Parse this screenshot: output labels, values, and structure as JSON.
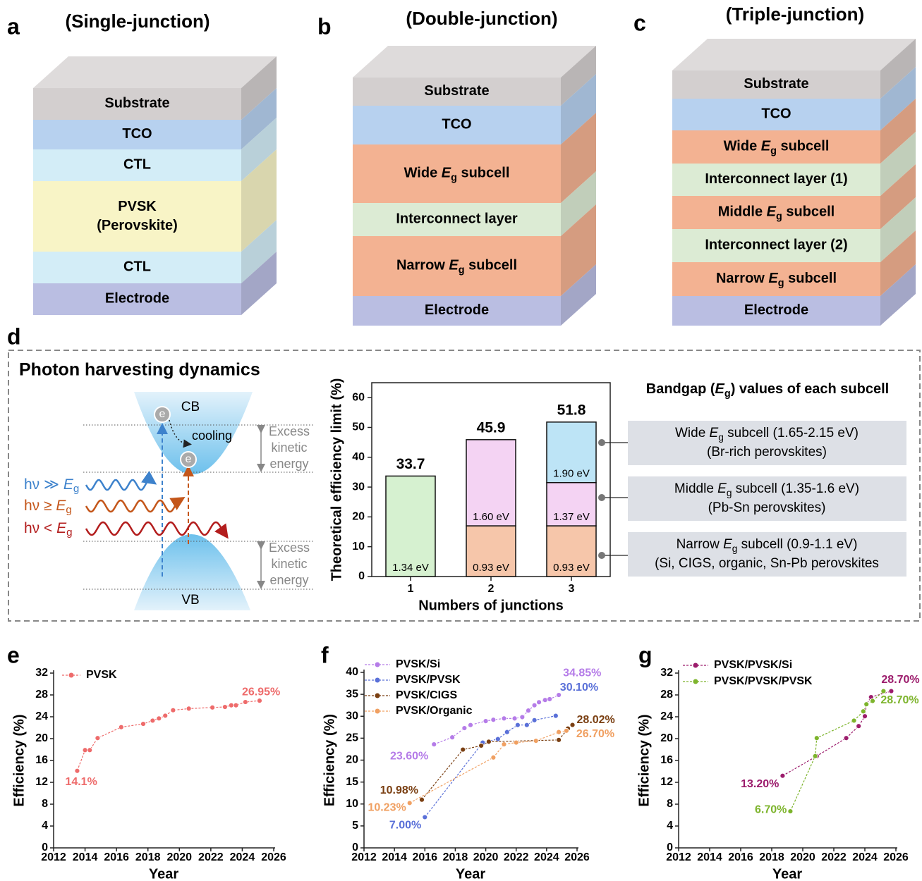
{
  "panel_labels": [
    "a",
    "b",
    "c",
    "d",
    "e",
    "f",
    "g"
  ],
  "stacks": [
    {
      "title": "(Single-junction)",
      "layers": [
        {
          "text": [
            {
              "t": "Substrate"
            }
          ],
          "color": "#d3cfcf"
        },
        {
          "text": [
            {
              "t": "TCO"
            }
          ],
          "color": "#b7d1ef"
        },
        {
          "text": [
            {
              "t": "CTL"
            }
          ],
          "color": "#d3edf7"
        },
        {
          "text": [
            {
              "t": "PVSK"
            },
            {
              "t": "(Perovskite)",
              "style": "newline"
            }
          ],
          "color": "#f8f4c6"
        },
        {
          "text": [
            {
              "t": "CTL"
            }
          ],
          "color": "#d3edf7"
        },
        {
          "text": [
            {
              "t": "Electrode"
            }
          ],
          "color": "#babee2"
        }
      ]
    },
    {
      "title": "(Double-junction)",
      "layers": [
        {
          "text": [
            {
              "t": "Substrate"
            }
          ],
          "color": "#d3cfcf"
        },
        {
          "text": [
            {
              "t": "TCO"
            }
          ],
          "color": "#b7d1ef"
        },
        {
          "text": [
            {
              "t": "Wide "
            },
            {
              "t": "E",
              "style": "italic"
            },
            {
              "t": "g",
              "style": "sub"
            },
            {
              "t": " subcell"
            }
          ],
          "color": "#f3b292"
        },
        {
          "text": [
            {
              "t": "Interconnect layer"
            }
          ],
          "color": "#dcebd4"
        },
        {
          "text": [
            {
              "t": "Narrow "
            },
            {
              "t": "E",
              "style": "italic"
            },
            {
              "t": "g",
              "style": "sub"
            },
            {
              "t": " subcell"
            }
          ],
          "color": "#f3b292"
        },
        {
          "text": [
            {
              "t": "Electrode"
            }
          ],
          "color": "#babee2"
        }
      ]
    },
    {
      "title": "(Triple-junction)",
      "layers": [
        {
          "text": [
            {
              "t": "Substrate"
            }
          ],
          "color": "#d3cfcf"
        },
        {
          "text": [
            {
              "t": "TCO"
            }
          ],
          "color": "#b7d1ef"
        },
        {
          "text": [
            {
              "t": "Wide "
            },
            {
              "t": "E",
              "style": "italic"
            },
            {
              "t": "g",
              "style": "sub"
            },
            {
              "t": " subcell"
            }
          ],
          "color": "#f3b292"
        },
        {
          "text": [
            {
              "t": "Interconnect layer (1)"
            }
          ],
          "color": "#dcebd4"
        },
        {
          "text": [
            {
              "t": "Middle "
            },
            {
              "t": "E",
              "style": "italic"
            },
            {
              "t": "g",
              "style": "sub"
            },
            {
              "t": " subcell"
            }
          ],
          "color": "#f3b292"
        },
        {
          "text": [
            {
              "t": "Interconnect layer (2)"
            }
          ],
          "color": "#dcebd4"
        },
        {
          "text": [
            {
              "t": "Narrow "
            },
            {
              "t": "E",
              "style": "italic"
            },
            {
              "t": "g",
              "style": "sub"
            },
            {
              "t": " subcell"
            }
          ],
          "color": "#f3b292"
        },
        {
          "text": [
            {
              "t": "Electrode"
            }
          ],
          "color": "#babee2"
        }
      ]
    }
  ],
  "photon": {
    "title": "Photon harvesting dynamics",
    "cb": "CB",
    "vb": "VB",
    "electron": "e",
    "cooling": "cooling",
    "excess": [
      "Excess",
      "kinetic",
      "energy"
    ],
    "photons": [
      {
        "text": [
          {
            "t": "hν ≫ "
          },
          {
            "t": "E",
            "style": "italic"
          },
          {
            "t": "g",
            "style": "sub"
          }
        ],
        "color": "#3d82cc"
      },
      {
        "text": [
          {
            "t": "hν ≥ "
          },
          {
            "t": "E",
            "style": "italic"
          },
          {
            "t": "g",
            "style": "sub"
          }
        ],
        "color": "#c4561a"
      },
      {
        "text": [
          {
            "t": "hν < "
          },
          {
            "t": "E",
            "style": "italic"
          },
          {
            "t": "g",
            "style": "sub"
          }
        ],
        "color": "#b31d1d"
      }
    ]
  },
  "subcells": {
    "title": [
      {
        "t": "Bandgap ("
      },
      {
        "t": "E",
        "style": "italic"
      },
      {
        "t": "g",
        "style": "sub"
      },
      {
        "t": ") values of each subcell"
      }
    ],
    "boxes": [
      {
        "lines": [
          [
            {
              "t": "Wide "
            },
            {
              "t": "E",
              "style": "italic"
            },
            {
              "t": "g",
              "style": "sub"
            },
            {
              "t": " subcell (1.65-2.15 eV)"
            }
          ],
          [
            {
              "t": "(Br-rich perovskites)"
            }
          ]
        ]
      },
      {
        "lines": [
          [
            {
              "t": "Middle "
            },
            {
              "t": "E",
              "style": "italic"
            },
            {
              "t": "g",
              "style": "sub"
            },
            {
              "t": " subcell (1.35-1.6 eV)"
            }
          ],
          [
            {
              "t": "(Pb-Sn perovskites)"
            }
          ]
        ]
      },
      {
        "lines": [
          [
            {
              "t": "Narrow "
            },
            {
              "t": "E",
              "style": "italic"
            },
            {
              "t": "g",
              "style": "sub"
            },
            {
              "t": " subcell (0.9-1.1 eV)"
            }
          ],
          [
            {
              "t": "(Si, CIGS, organic, Sn-Pb perovskites"
            }
          ]
        ]
      }
    ]
  },
  "chart_data": [
    {
      "type": "stacked-bar",
      "ylabel": "Theoretical efficiency limit (%)",
      "xlabel": "Numbers of junctions",
      "categories": [
        "1",
        "2",
        "3"
      ],
      "totals": [
        33.7,
        45.9,
        51.8
      ],
      "stacks": [
        [
          {
            "value": 33.7,
            "color": "#d6f1d0",
            "label": "1.34 eV"
          }
        ],
        [
          {
            "value": 17,
            "color": "#f6c6aa",
            "label": "0.93 eV"
          },
          {
            "value": 28.9,
            "color": "#f4d3f3",
            "label": "1.60 eV"
          }
        ],
        [
          {
            "value": 17,
            "color": "#f6c6aa",
            "label": "0.93 eV"
          },
          {
            "value": 14.5,
            "color": "#f4d3f3",
            "label": "1.37 eV"
          },
          {
            "value": 20.3,
            "color": "#bde4f6",
            "label": "1.90 eV"
          }
        ]
      ],
      "ylim": [
        0,
        65
      ],
      "yticks": [
        0,
        10,
        20,
        30,
        40,
        50,
        60
      ]
    },
    {
      "type": "line",
      "xlabel": "Year",
      "ylabel": "Efficiency (%)",
      "xlim": [
        2012,
        2026
      ],
      "xticks": [
        2012,
        2014,
        2016,
        2018,
        2020,
        2022,
        2024,
        2026
      ],
      "ylim": [
        0,
        32
      ],
      "yticks": [
        0,
        4,
        8,
        12,
        16,
        20,
        24,
        28,
        32
      ],
      "series": [
        {
          "name": "PVSK",
          "color": "#ee6b6b",
          "x": [
            2013.5,
            2014,
            2014.3,
            2014.8,
            2016.3,
            2017.7,
            2018.3,
            2018.7,
            2019.1,
            2019.6,
            2020.6,
            2022.1,
            2022.9,
            2023.3,
            2023.6,
            2024.2,
            2025.1
          ],
          "values": [
            14.1,
            17.9,
            17.9,
            20.1,
            22.1,
            22.7,
            23.3,
            23.7,
            24.2,
            25.2,
            25.5,
            25.7,
            25.8,
            26.1,
            26.1,
            26.7,
            26.95
          ],
          "value_labels": [
            "14.1%",
            null,
            null,
            null,
            null,
            null,
            null,
            null,
            null,
            null,
            null,
            null,
            null,
            null,
            null,
            null,
            "26.95%"
          ]
        }
      ]
    },
    {
      "type": "line",
      "xlabel": "Year",
      "ylabel": "Efficiency (%)",
      "xlim": [
        2012,
        2026
      ],
      "xticks": [
        2012,
        2014,
        2016,
        2018,
        2020,
        2022,
        2024,
        2026
      ],
      "ylim": [
        0,
        40
      ],
      "yticks": [
        0,
        5,
        10,
        15,
        20,
        25,
        30,
        35,
        40
      ],
      "series": [
        {
          "name": "PVSK/Si",
          "color": "#b57ce8",
          "x": [
            2016.6,
            2017.8,
            2018.6,
            2019,
            2020,
            2020.5,
            2021.2,
            2021.9,
            2022.4,
            2022.8,
            2023.2,
            2023.5,
            2023.9,
            2024.2,
            2024.8
          ],
          "values": [
            23.6,
            25.2,
            27.3,
            28,
            28.9,
            29.2,
            29.5,
            29.5,
            29.8,
            31.3,
            32.5,
            33.2,
            33.7,
            33.9,
            34.85
          ],
          "value_labels": [
            "23.60%",
            null,
            null,
            null,
            null,
            null,
            null,
            null,
            null,
            null,
            null,
            null,
            null,
            null,
            "34.85%"
          ]
        },
        {
          "name": "PVSK/PVSK",
          "color": "#5a70d8",
          "x": [
            2016,
            2019.8,
            2020.8,
            2021.4,
            2022.1,
            2022.7,
            2023.2,
            2024.6
          ],
          "values": [
            7.0,
            24.0,
            24.8,
            26.4,
            28.0,
            28.0,
            29.1,
            30.1
          ],
          "value_labels": [
            "7.00%",
            null,
            null,
            null,
            null,
            null,
            null,
            "30.10%"
          ]
        },
        {
          "name": "PVSK/CIGS",
          "color": "#7a3f12",
          "x": [
            2015.8,
            2018.5,
            2019.7,
            2020.2,
            2024.8,
            2025.4,
            2025.7
          ],
          "values": [
            10.98,
            22.4,
            23.3,
            24.2,
            24.6,
            27.2,
            28.02
          ],
          "value_labels": [
            "10.98%",
            null,
            null,
            null,
            null,
            null,
            "28.02%"
          ]
        },
        {
          "name": "PVSK/Organic",
          "color": "#f0a062",
          "x": [
            2015,
            2020.5,
            2021.2,
            2022,
            2023.3,
            2024.8,
            2025.3
          ],
          "values": [
            10.23,
            20.6,
            23.6,
            24.0,
            24.4,
            26.4,
            26.7
          ],
          "value_labels": [
            "10.23%",
            null,
            null,
            null,
            null,
            null,
            "26.70%"
          ]
        }
      ]
    },
    {
      "type": "line",
      "xlabel": "Year",
      "ylabel": "Efficiency (%)",
      "xlim": [
        2012,
        2026
      ],
      "xticks": [
        2012,
        2014,
        2016,
        2018,
        2020,
        2022,
        2024,
        2026
      ],
      "ylim": [
        0,
        32
      ],
      "yticks": [
        0,
        4,
        8,
        12,
        16,
        20,
        24,
        28,
        32
      ],
      "series": [
        {
          "name": "PVSK/PVSK/Si",
          "color": "#9c1c6c",
          "x": [
            2018.7,
            2020.9,
            2022.8,
            2023.6,
            2024,
            2024.1,
            2024.4,
            2025.7
          ],
          "values": [
            13.2,
            16.8,
            20.1,
            22.3,
            24.1,
            26.3,
            27.6,
            28.7
          ],
          "value_labels": [
            "13.20%",
            null,
            null,
            null,
            null,
            null,
            null,
            "28.70%"
          ]
        },
        {
          "name": "PVSK/PVSK/PVSK",
          "color": "#7db42c",
          "x": [
            2019.2,
            2020.8,
            2020.9,
            2023.3,
            2023.9,
            2024.1,
            2024.5,
            2025.2
          ],
          "values": [
            6.7,
            16.8,
            20.1,
            23.3,
            25.0,
            26.3,
            26.9,
            28.7
          ],
          "value_labels": [
            "6.70%",
            null,
            null,
            null,
            null,
            null,
            null,
            "28.70%"
          ]
        }
      ]
    }
  ]
}
